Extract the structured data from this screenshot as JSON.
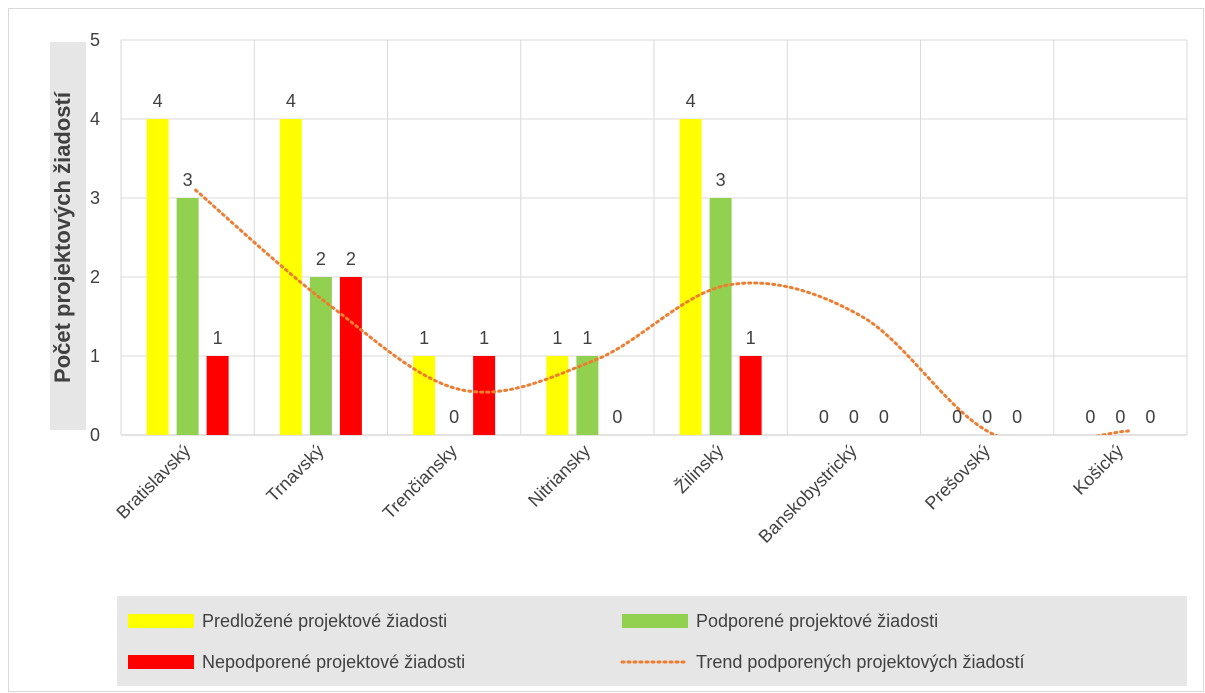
{
  "chart_data": {
    "type": "bar",
    "title": "",
    "xlabel": "",
    "ylabel": "Počet projektových žiadostí",
    "ylim": [
      0,
      5
    ],
    "yticks": [
      "0",
      "1",
      "2",
      "3",
      "4",
      "5"
    ],
    "categories": [
      "Bratislavský",
      "Trnavský",
      "Trenčiansky",
      "Nitriansky",
      "Žilinský",
      "Banskobystrický",
      "Prešovský",
      "Košický"
    ],
    "series": [
      {
        "name": "Predložené projektové žiadosti",
        "color": "#ffff00",
        "values": [
          4,
          4,
          1,
          1,
          4,
          0,
          0,
          0
        ],
        "labels": [
          "4",
          "4",
          "1",
          "1",
          "4",
          "0",
          "0",
          "0"
        ]
      },
      {
        "name": "Podporené projektové žiadosti",
        "color": "#92d050",
        "values": [
          3,
          2,
          0,
          1,
          3,
          0,
          0,
          0
        ],
        "labels": [
          "3",
          "2",
          "0",
          "1",
          "3",
          "0",
          "0",
          "0"
        ]
      },
      {
        "name": "Nepodporené projektové žiadosti",
        "color": "#ff0000",
        "values": [
          1,
          2,
          1,
          0,
          1,
          0,
          0,
          0
        ],
        "labels": [
          "1",
          "2",
          "1",
          "0",
          "1",
          "0",
          "0",
          "0"
        ]
      }
    ],
    "trendline": {
      "name": "Trend podporených projektových žiadostí",
      "color": "#ed7d31",
      "style": "dotted",
      "points": [
        {
          "x": "Bratislavský",
          "y": 3.1
        },
        {
          "x": "Trnavský",
          "y": 1.65
        },
        {
          "x": "Trenčiansky",
          "y": 0.57
        },
        {
          "x": "Nitriansky",
          "y": 0.95
        },
        {
          "x": "Žilinský",
          "y": 1.9
        },
        {
          "x": "Banskobystrický",
          "y": 1.5
        },
        {
          "x": "Prešovský",
          "y": 0
        },
        {
          "x": "Košický",
          "y": 0.05
        }
      ]
    },
    "grid": true,
    "legend_position": "bottom"
  }
}
